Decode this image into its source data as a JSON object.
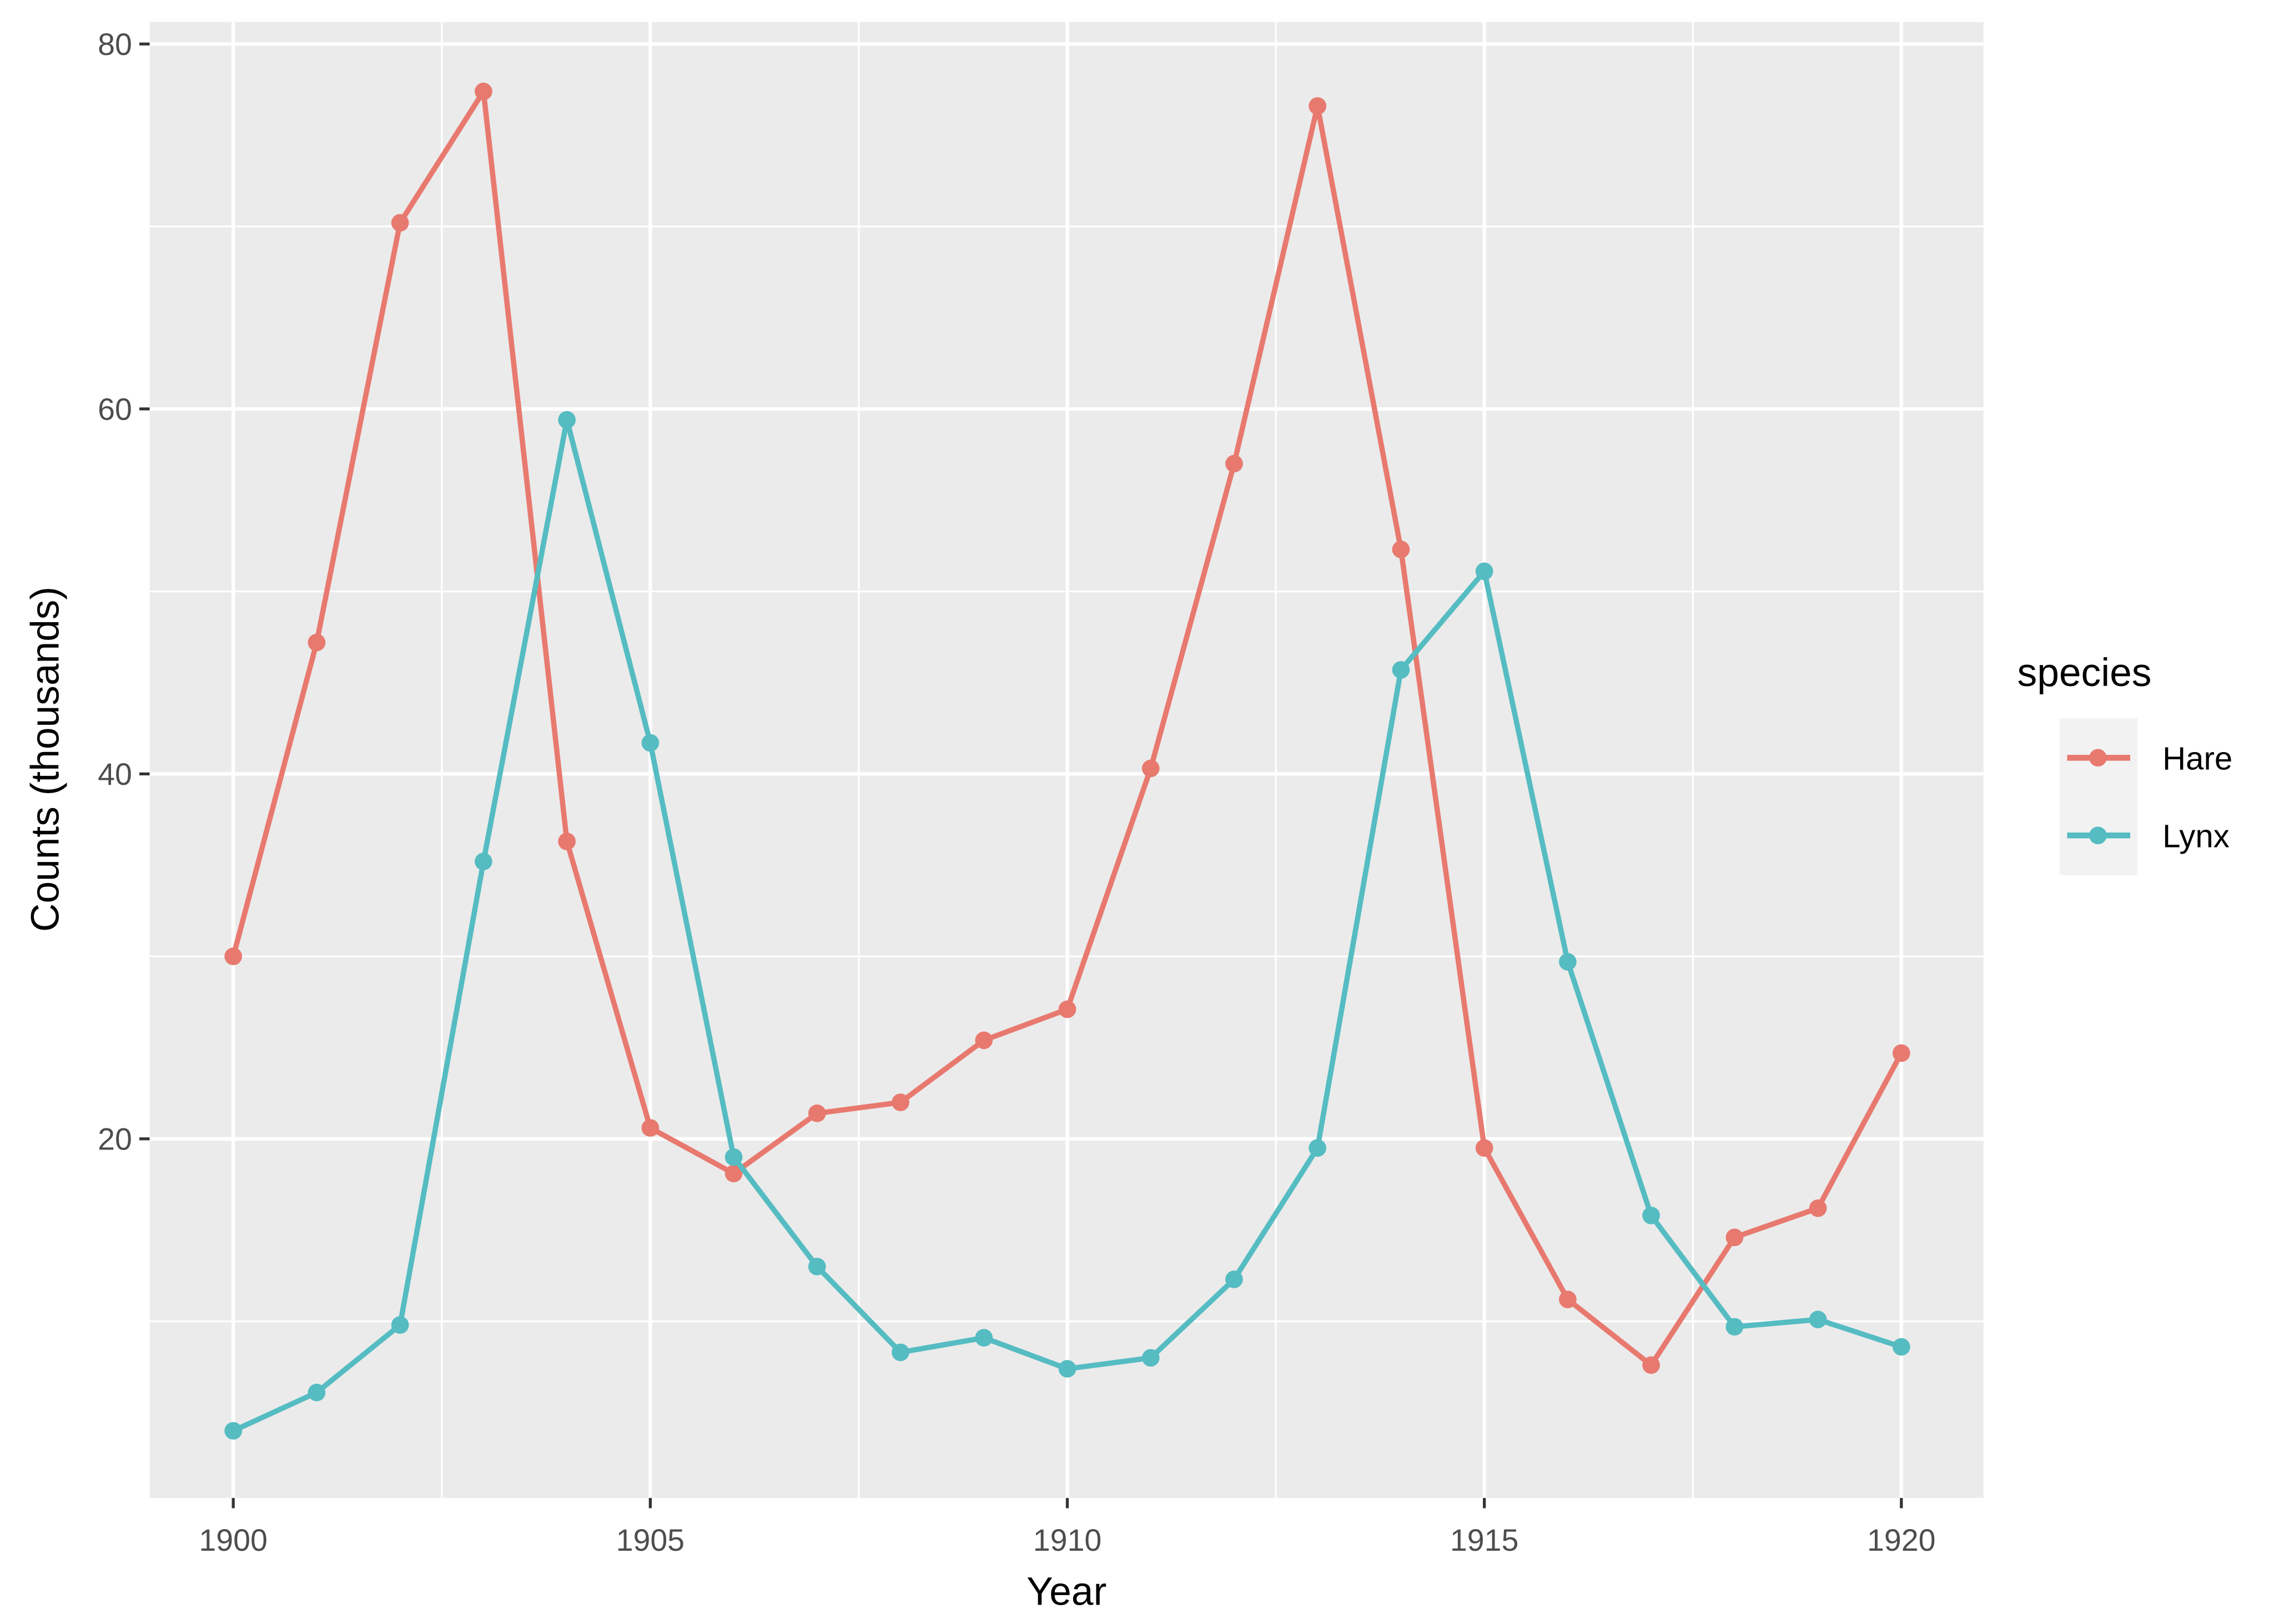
{
  "chart_data": {
    "type": "line",
    "title": "",
    "xlabel": "Year",
    "ylabel": "Counts (thousands)",
    "x": [
      1900,
      1901,
      1902,
      1903,
      1904,
      1905,
      1906,
      1907,
      1908,
      1909,
      1910,
      1911,
      1912,
      1913,
      1914,
      1915,
      1916,
      1917,
      1918,
      1919,
      1920
    ],
    "series": [
      {
        "name": "Hare",
        "color": "#F8766D",
        "values": [
          30,
          47.2,
          70.2,
          77.4,
          36.3,
          20.6,
          18.1,
          21.4,
          22,
          25.4,
          27.1,
          40.3,
          57,
          76.6,
          52.3,
          19.5,
          11.2,
          7.6,
          14.6,
          16.2,
          24.7
        ]
      },
      {
        "name": "Lynx",
        "color": "#00BFC4",
        "values": [
          4,
          6.1,
          9.8,
          35.2,
          59.4,
          41.7,
          19,
          13,
          8.3,
          9.1,
          7.4,
          8,
          12.3,
          19.5,
          45.7,
          51.1,
          29.7,
          15.8,
          9.7,
          10.1,
          8.6
        ]
      }
    ],
    "xlim": [
      1899,
      1921
    ],
    "ylim": [
      0.3,
      81.1
    ],
    "x_ticks": [
      1900,
      1905,
      1910,
      1915,
      1920
    ],
    "x_tick_labels": [
      "1900",
      "1905",
      "1910",
      "1915",
      "1920"
    ],
    "y_ticks": [
      20,
      40,
      60,
      80
    ],
    "y_tick_labels": [
      "20",
      "40",
      "60",
      "80"
    ],
    "grid": true,
    "legend": {
      "title": "species",
      "position": "right",
      "entries": [
        "Hare",
        "Lynx"
      ]
    }
  },
  "colors": {
    "panel_bg": "#EBEBEB",
    "grid": "#FFFFFF",
    "legend_key_bg": "#F2F2F2",
    "hare": "#E8796F",
    "lynx": "#55BCC2"
  }
}
